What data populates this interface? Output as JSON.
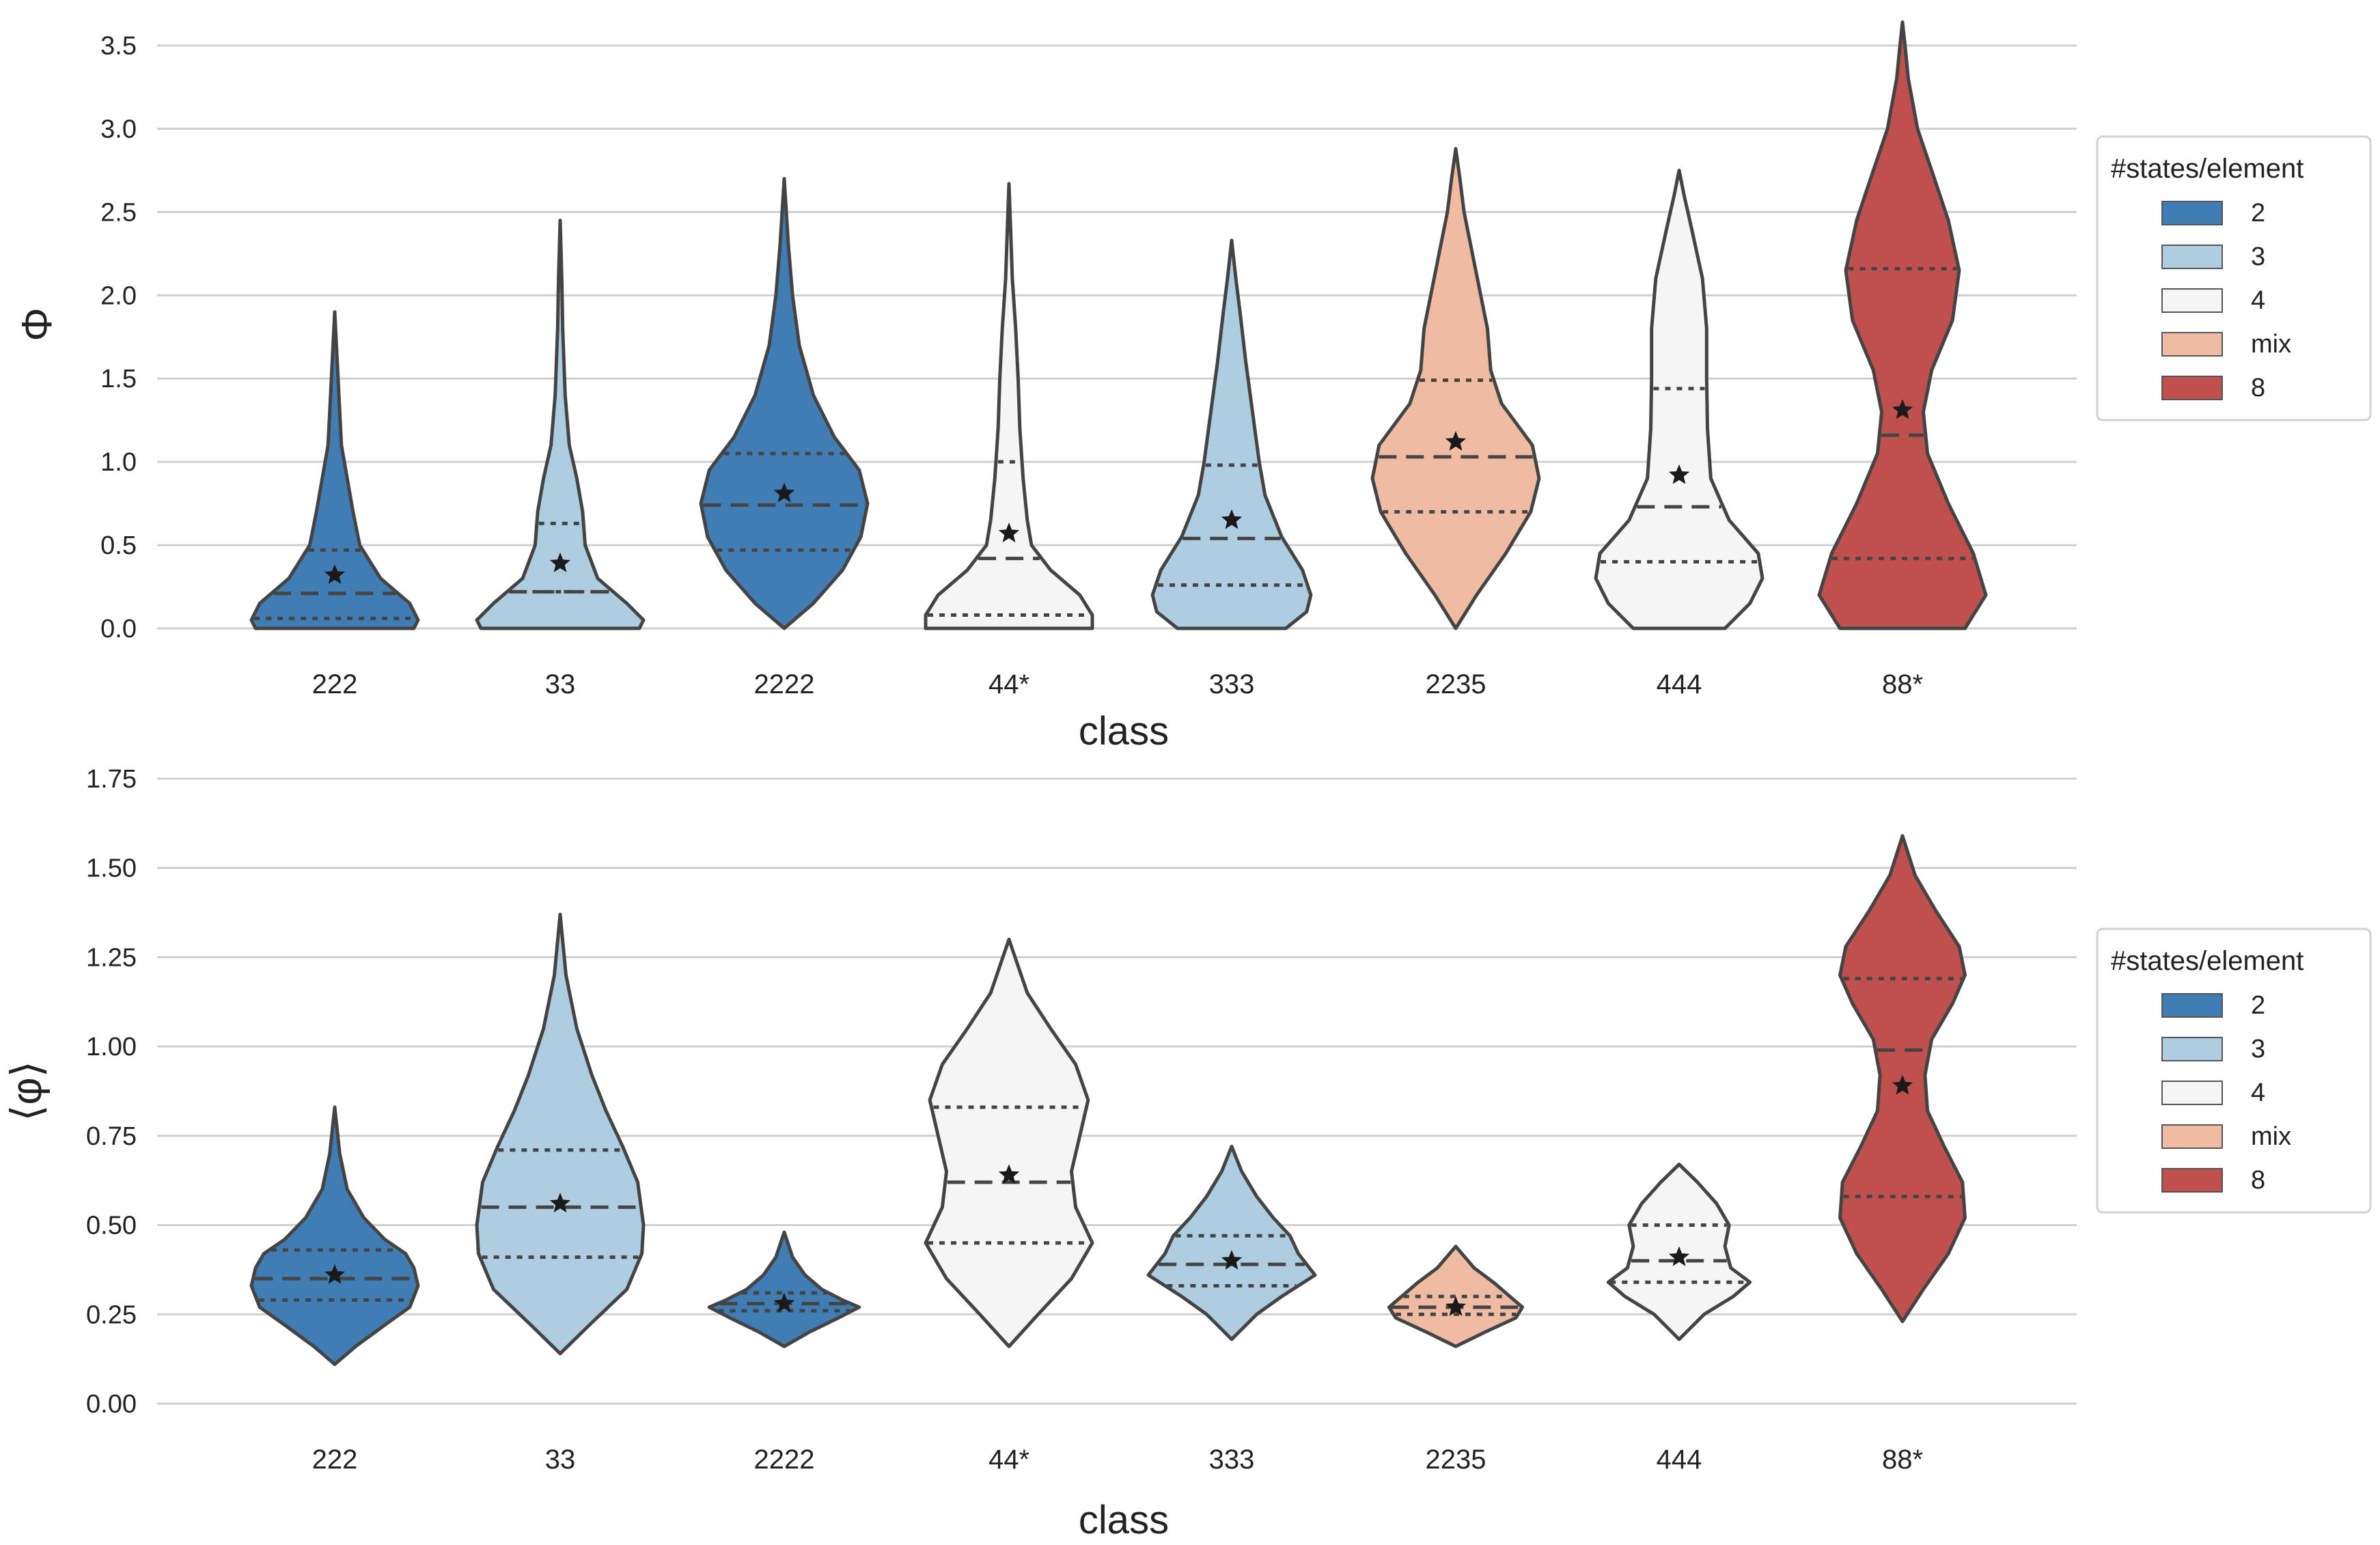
{
  "colors": {
    "2": "#3f7db4",
    "3": "#aecde1",
    "4": "#f5f5f5",
    "mix": "#efbba2",
    "8": "#c0504e",
    "outline": "#444444",
    "grid": "#cfcfcf"
  },
  "legend": {
    "title": "#states/element",
    "entries": [
      {
        "label": "2",
        "color_key": "2"
      },
      {
        "label": "3",
        "color_key": "3"
      },
      {
        "label": "4",
        "color_key": "4"
      },
      {
        "label": "mix",
        "color_key": "mix"
      },
      {
        "label": "8",
        "color_key": "8"
      }
    ]
  },
  "chart_data": [
    {
      "type": "violin",
      "xlabel": "class",
      "ylabel": "Φ",
      "ylim": [
        0,
        3.65
      ],
      "yticks": [
        0.0,
        0.5,
        1.0,
        1.5,
        2.0,
        2.5,
        3.0,
        3.5
      ],
      "ytick_labels": [
        "0.0",
        "0.5",
        "1.0",
        "1.5",
        "2.0",
        "2.5",
        "3.0",
        "3.5"
      ],
      "grid": true,
      "legend_position": "right",
      "categories": [
        "222",
        "33",
        "2222",
        "44*",
        "333",
        "2235",
        "444",
        "88*"
      ],
      "violins": [
        {
          "category": "222",
          "group": "2",
          "min": 0.0,
          "max": 1.9,
          "q1": 0.06,
          "median": 0.21,
          "q3": 0.47,
          "mean": 0.32,
          "density": [
            [
              0.0,
              0.95
            ],
            [
              0.05,
              1.0
            ],
            [
              0.15,
              0.9
            ],
            [
              0.3,
              0.55
            ],
            [
              0.5,
              0.3
            ],
            [
              0.7,
              0.22
            ],
            [
              0.9,
              0.15
            ],
            [
              1.1,
              0.08
            ],
            [
              1.4,
              0.05
            ],
            [
              1.6,
              0.03
            ],
            [
              1.9,
              0.0
            ]
          ]
        },
        {
          "category": "33",
          "group": "3",
          "min": 0.0,
          "max": 2.45,
          "q1": 0.22,
          "median": 0.22,
          "q3": 0.63,
          "mean": 0.39,
          "density": [
            [
              0.0,
              0.95
            ],
            [
              0.05,
              1.0
            ],
            [
              0.15,
              0.8
            ],
            [
              0.3,
              0.45
            ],
            [
              0.5,
              0.3
            ],
            [
              0.7,
              0.27
            ],
            [
              0.9,
              0.2
            ],
            [
              1.1,
              0.11
            ],
            [
              1.4,
              0.06
            ],
            [
              1.8,
              0.03
            ],
            [
              2.1,
              0.02
            ],
            [
              2.45,
              0.0
            ]
          ]
        },
        {
          "category": "2222",
          "group": "2",
          "min": 0.0,
          "max": 2.7,
          "q1": 0.47,
          "median": 0.74,
          "q3": 1.05,
          "mean": 0.81,
          "density": [
            [
              0.0,
              0.0
            ],
            [
              0.15,
              0.35
            ],
            [
              0.35,
              0.7
            ],
            [
              0.55,
              0.92
            ],
            [
              0.75,
              1.0
            ],
            [
              0.95,
              0.9
            ],
            [
              1.15,
              0.6
            ],
            [
              1.4,
              0.35
            ],
            [
              1.7,
              0.18
            ],
            [
              2.0,
              0.1
            ],
            [
              2.3,
              0.05
            ],
            [
              2.7,
              0.0
            ]
          ]
        },
        {
          "category": "44*",
          "group": "4",
          "min": 0.0,
          "max": 2.67,
          "q1": 0.08,
          "median": 0.42,
          "q3": 1.0,
          "mean": 0.57,
          "density": [
            [
              0.0,
              1.0
            ],
            [
              0.08,
              1.0
            ],
            [
              0.2,
              0.85
            ],
            [
              0.35,
              0.5
            ],
            [
              0.5,
              0.27
            ],
            [
              0.65,
              0.22
            ],
            [
              0.9,
              0.17
            ],
            [
              1.2,
              0.13
            ],
            [
              1.5,
              0.11
            ],
            [
              1.8,
              0.08
            ],
            [
              2.1,
              0.04
            ],
            [
              2.4,
              0.02
            ],
            [
              2.67,
              0.0
            ]
          ]
        },
        {
          "category": "333",
          "group": "3",
          "min": 0.0,
          "max": 2.33,
          "q1": 0.26,
          "median": 0.54,
          "q3": 0.98,
          "mean": 0.65,
          "density": [
            [
              0.0,
              0.65
            ],
            [
              0.1,
              0.9
            ],
            [
              0.2,
              0.95
            ],
            [
              0.35,
              0.85
            ],
            [
              0.55,
              0.6
            ],
            [
              0.8,
              0.4
            ],
            [
              1.0,
              0.33
            ],
            [
              1.3,
              0.25
            ],
            [
              1.6,
              0.17
            ],
            [
              1.9,
              0.1
            ],
            [
              2.1,
              0.05
            ],
            [
              2.33,
              0.0
            ]
          ]
        },
        {
          "category": "2235",
          "group": "mix",
          "min": 0.0,
          "max": 2.88,
          "q1": 0.7,
          "median": 1.03,
          "q3": 1.49,
          "mean": 1.12,
          "density": [
            [
              0.0,
              0.0
            ],
            [
              0.2,
              0.25
            ],
            [
              0.45,
              0.6
            ],
            [
              0.7,
              0.9
            ],
            [
              0.9,
              1.0
            ],
            [
              1.1,
              0.92
            ],
            [
              1.35,
              0.55
            ],
            [
              1.55,
              0.42
            ],
            [
              1.8,
              0.38
            ],
            [
              2.0,
              0.3
            ],
            [
              2.25,
              0.2
            ],
            [
              2.5,
              0.1
            ],
            [
              2.7,
              0.05
            ],
            [
              2.88,
              0.0
            ]
          ]
        },
        {
          "category": "444",
          "group": "4",
          "min": 0.0,
          "max": 2.75,
          "q1": 0.4,
          "median": 0.73,
          "q3": 1.44,
          "mean": 0.92,
          "density": [
            [
              0.0,
              0.55
            ],
            [
              0.15,
              0.85
            ],
            [
              0.3,
              1.0
            ],
            [
              0.45,
              0.95
            ],
            [
              0.65,
              0.6
            ],
            [
              0.9,
              0.38
            ],
            [
              1.2,
              0.34
            ],
            [
              1.5,
              0.33
            ],
            [
              1.8,
              0.33
            ],
            [
              2.1,
              0.28
            ],
            [
              2.4,
              0.15
            ],
            [
              2.6,
              0.06
            ],
            [
              2.75,
              0.0
            ]
          ]
        },
        {
          "category": "88*",
          "group": "8",
          "min": 0.0,
          "max": 3.64,
          "q1": 0.42,
          "median": 1.16,
          "q3": 2.16,
          "mean": 1.31,
          "density": [
            [
              0.0,
              0.75
            ],
            [
              0.2,
              1.0
            ],
            [
              0.45,
              0.85
            ],
            [
              0.75,
              0.55
            ],
            [
              1.05,
              0.3
            ],
            [
              1.3,
              0.25
            ],
            [
              1.55,
              0.35
            ],
            [
              1.85,
              0.6
            ],
            [
              2.15,
              0.68
            ],
            [
              2.45,
              0.55
            ],
            [
              2.75,
              0.35
            ],
            [
              3.0,
              0.18
            ],
            [
              3.3,
              0.07
            ],
            [
              3.5,
              0.03
            ],
            [
              3.64,
              0.0
            ]
          ]
        }
      ]
    },
    {
      "type": "violin",
      "xlabel": "class",
      "ylabel": "⟨φ⟩",
      "ylim": [
        0,
        1.75
      ],
      "yticks": [
        0.0,
        0.25,
        0.5,
        0.75,
        1.0,
        1.25,
        1.5,
        1.75
      ],
      "ytick_labels": [
        "0.00",
        "0.25",
        "0.50",
        "0.75",
        "1.00",
        "1.25",
        "1.50",
        "1.75"
      ],
      "grid": true,
      "legend_position": "right",
      "categories": [
        "222",
        "33",
        "2222",
        "44*",
        "333",
        "2235",
        "444",
        "88*"
      ],
      "violins": [
        {
          "category": "222",
          "group": "2",
          "min": 0.11,
          "max": 0.83,
          "q1": 0.29,
          "median": 0.35,
          "q3": 0.43,
          "mean": 0.36,
          "density": [
            [
              0.11,
              0.0
            ],
            [
              0.16,
              0.25
            ],
            [
              0.22,
              0.6
            ],
            [
              0.27,
              0.9
            ],
            [
              0.33,
              1.0
            ],
            [
              0.38,
              0.95
            ],
            [
              0.42,
              0.85
            ],
            [
              0.46,
              0.6
            ],
            [
              0.52,
              0.35
            ],
            [
              0.6,
              0.15
            ],
            [
              0.7,
              0.06
            ],
            [
              0.83,
              0.0
            ]
          ]
        },
        {
          "category": "33",
          "group": "3",
          "min": 0.14,
          "max": 1.37,
          "q1": 0.41,
          "median": 0.55,
          "q3": 0.71,
          "mean": 0.56,
          "density": [
            [
              0.14,
              0.0
            ],
            [
              0.22,
              0.35
            ],
            [
              0.32,
              0.8
            ],
            [
              0.42,
              0.98
            ],
            [
              0.5,
              1.0
            ],
            [
              0.62,
              0.93
            ],
            [
              0.72,
              0.75
            ],
            [
              0.82,
              0.55
            ],
            [
              0.92,
              0.38
            ],
            [
              1.05,
              0.2
            ],
            [
              1.2,
              0.07
            ],
            [
              1.37,
              0.0
            ]
          ]
        },
        {
          "category": "2222",
          "group": "2",
          "min": 0.16,
          "max": 0.48,
          "q1": 0.26,
          "median": 0.28,
          "q3": 0.31,
          "mean": 0.28,
          "density": [
            [
              0.16,
              0.0
            ],
            [
              0.2,
              0.3
            ],
            [
              0.24,
              0.65
            ],
            [
              0.27,
              0.9
            ],
            [
              0.29,
              0.7
            ],
            [
              0.32,
              0.45
            ],
            [
              0.36,
              0.25
            ],
            [
              0.41,
              0.1
            ],
            [
              0.48,
              0.0
            ]
          ]
        },
        {
          "category": "44*",
          "group": "4",
          "min": 0.16,
          "max": 1.3,
          "q1": 0.45,
          "median": 0.62,
          "q3": 0.83,
          "mean": 0.64,
          "density": [
            [
              0.16,
              0.0
            ],
            [
              0.25,
              0.35
            ],
            [
              0.35,
              0.75
            ],
            [
              0.45,
              1.0
            ],
            [
              0.55,
              0.8
            ],
            [
              0.65,
              0.75
            ],
            [
              0.75,
              0.85
            ],
            [
              0.85,
              0.95
            ],
            [
              0.95,
              0.8
            ],
            [
              1.05,
              0.5
            ],
            [
              1.15,
              0.22
            ],
            [
              1.3,
              0.0
            ]
          ]
        },
        {
          "category": "333",
          "group": "3",
          "min": 0.18,
          "max": 0.72,
          "q1": 0.33,
          "median": 0.39,
          "q3": 0.47,
          "mean": 0.4,
          "density": [
            [
              0.18,
              0.0
            ],
            [
              0.25,
              0.3
            ],
            [
              0.3,
              0.6
            ],
            [
              0.36,
              1.0
            ],
            [
              0.42,
              0.8
            ],
            [
              0.47,
              0.7
            ],
            [
              0.52,
              0.5
            ],
            [
              0.58,
              0.3
            ],
            [
              0.65,
              0.12
            ],
            [
              0.72,
              0.0
            ]
          ]
        },
        {
          "category": "2235",
          "group": "mix",
          "min": 0.16,
          "max": 0.44,
          "q1": 0.25,
          "median": 0.27,
          "q3": 0.3,
          "mean": 0.27,
          "density": [
            [
              0.16,
              0.0
            ],
            [
              0.2,
              0.35
            ],
            [
              0.24,
              0.72
            ],
            [
              0.27,
              0.8
            ],
            [
              0.3,
              0.65
            ],
            [
              0.34,
              0.45
            ],
            [
              0.38,
              0.22
            ],
            [
              0.44,
              0.0
            ]
          ]
        },
        {
          "category": "444",
          "group": "4",
          "min": 0.18,
          "max": 0.67,
          "q1": 0.34,
          "median": 0.4,
          "q3": 0.5,
          "mean": 0.41,
          "density": [
            [
              0.18,
              0.0
            ],
            [
              0.25,
              0.3
            ],
            [
              0.3,
              0.65
            ],
            [
              0.34,
              0.85
            ],
            [
              0.38,
              0.62
            ],
            [
              0.44,
              0.55
            ],
            [
              0.5,
              0.6
            ],
            [
              0.56,
              0.45
            ],
            [
              0.62,
              0.22
            ],
            [
              0.67,
              0.0
            ]
          ]
        },
        {
          "category": "88*",
          "group": "8",
          "min": 0.23,
          "max": 1.59,
          "q1": 0.58,
          "median": 0.99,
          "q3": 1.19,
          "mean": 0.89,
          "density": [
            [
              0.23,
              0.0
            ],
            [
              0.32,
              0.25
            ],
            [
              0.42,
              0.55
            ],
            [
              0.52,
              0.75
            ],
            [
              0.62,
              0.72
            ],
            [
              0.72,
              0.5
            ],
            [
              0.82,
              0.3
            ],
            [
              0.92,
              0.27
            ],
            [
              1.02,
              0.35
            ],
            [
              1.12,
              0.6
            ],
            [
              1.2,
              0.75
            ],
            [
              1.28,
              0.68
            ],
            [
              1.38,
              0.4
            ],
            [
              1.48,
              0.15
            ],
            [
              1.59,
              0.0
            ]
          ]
        }
      ]
    }
  ]
}
